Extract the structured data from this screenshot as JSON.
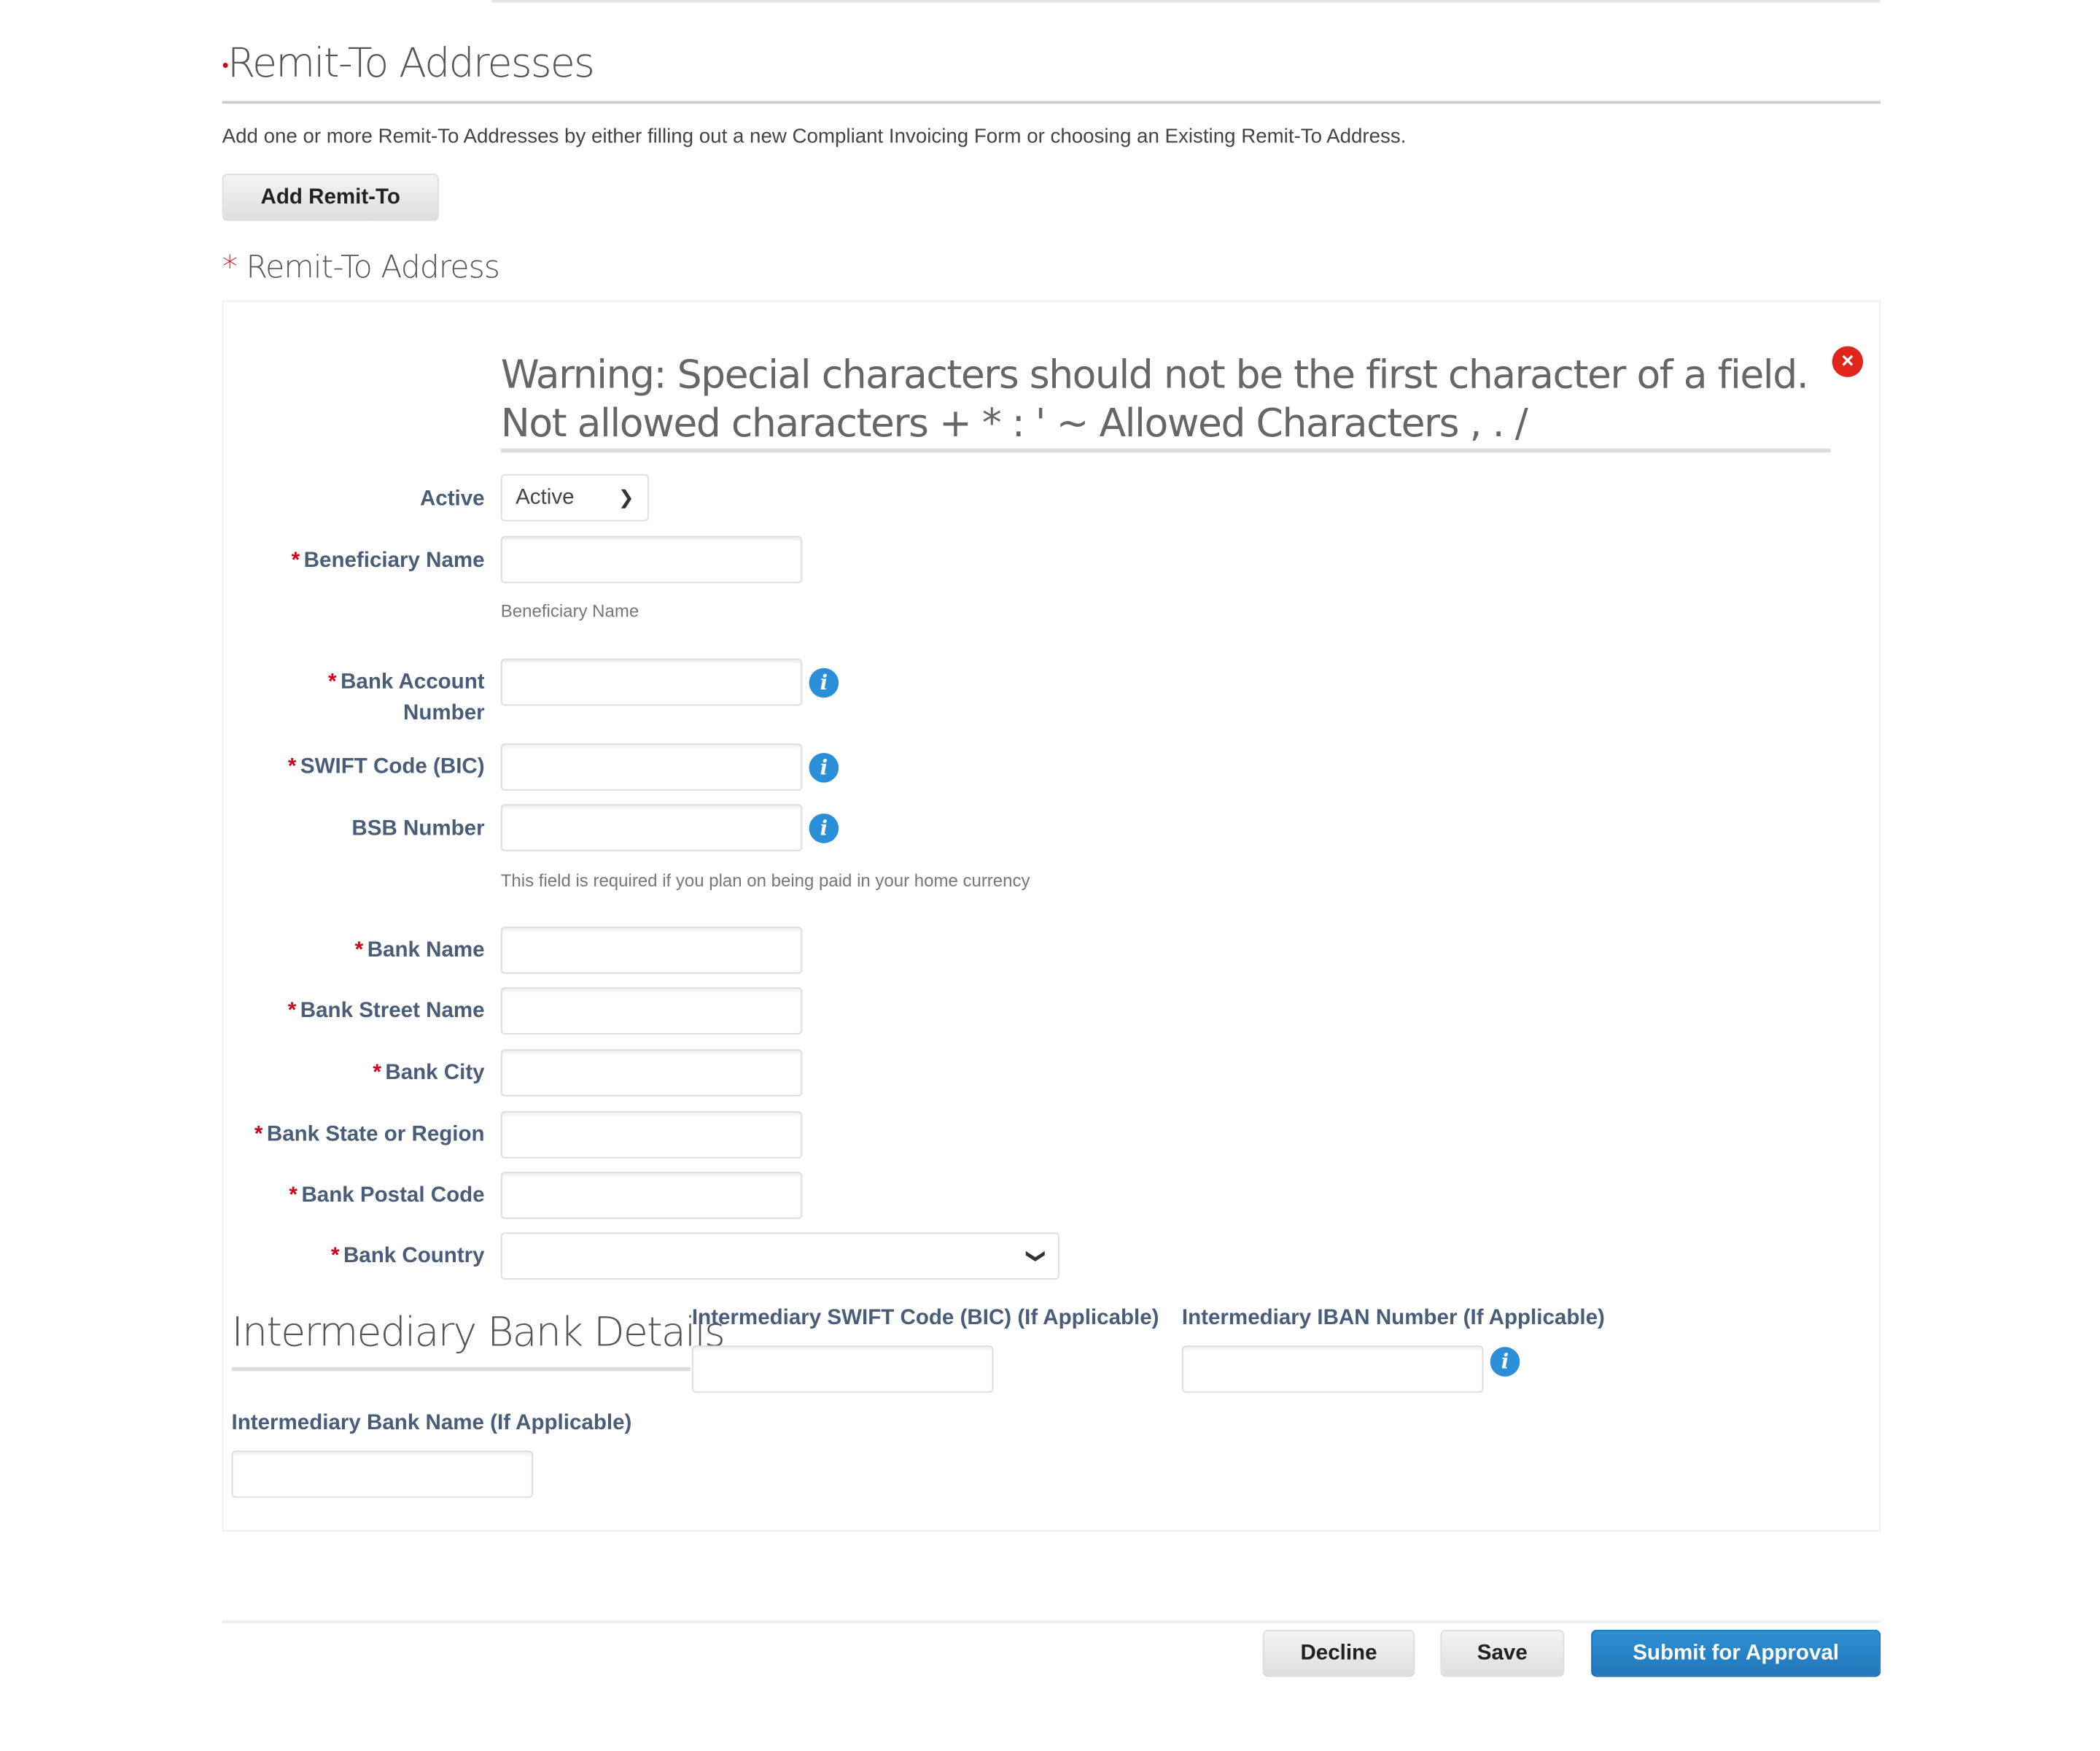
{
  "section": {
    "title": "Remit-To Addresses",
    "description": "Add one or more Remit-To Addresses by either filling out a new Compliant Invoicing Form or choosing an Existing Remit-To Address.",
    "add_button": "Add Remit-To"
  },
  "address": {
    "title": "Remit-To Address",
    "required_mark": "*",
    "warning": "Warning: Special characters should not be the first character of a field. Not allowed characters + * : ' ~ Allowed Characters , . /",
    "active": {
      "label": "Active",
      "value": "Active"
    },
    "fields": {
      "beneficiary_name": {
        "label": "Beneficiary Name",
        "value": "",
        "help": "Beneficiary Name"
      },
      "bank_account_number": {
        "label": "Bank Account Number",
        "value": ""
      },
      "swift_code": {
        "label": "SWIFT Code (BIC)",
        "value": ""
      },
      "bsb_number": {
        "label": "BSB Number",
        "value": "",
        "help": "This field is required if you plan on being paid in your home currency"
      },
      "bank_name": {
        "label": "Bank Name",
        "value": ""
      },
      "bank_street_name": {
        "label": "Bank Street Name",
        "value": ""
      },
      "bank_city": {
        "label": "Bank City",
        "value": ""
      },
      "bank_state": {
        "label": "Bank State or Region",
        "value": ""
      },
      "bank_postal_code": {
        "label": "Bank Postal Code",
        "value": ""
      },
      "bank_country": {
        "label": "Bank Country",
        "value": ""
      }
    },
    "intermediary": {
      "title": "Intermediary Bank Details",
      "swift_label": "Intermediary SWIFT Code (BIC) (If Applicable)",
      "iban_label": "Intermediary IBAN Number (If Applicable)",
      "bank_name_label": "Intermediary Bank Name (If Applicable)"
    }
  },
  "footer": {
    "decline": "Decline",
    "save": "Save",
    "submit": "Submit for Approval"
  },
  "icons": {
    "info": "i",
    "close": "×",
    "chevron": "⌄",
    "dot": "•"
  },
  "colors": {
    "accent": "#2a87c8",
    "required": "#d0021b",
    "label": "#4a5d78"
  }
}
